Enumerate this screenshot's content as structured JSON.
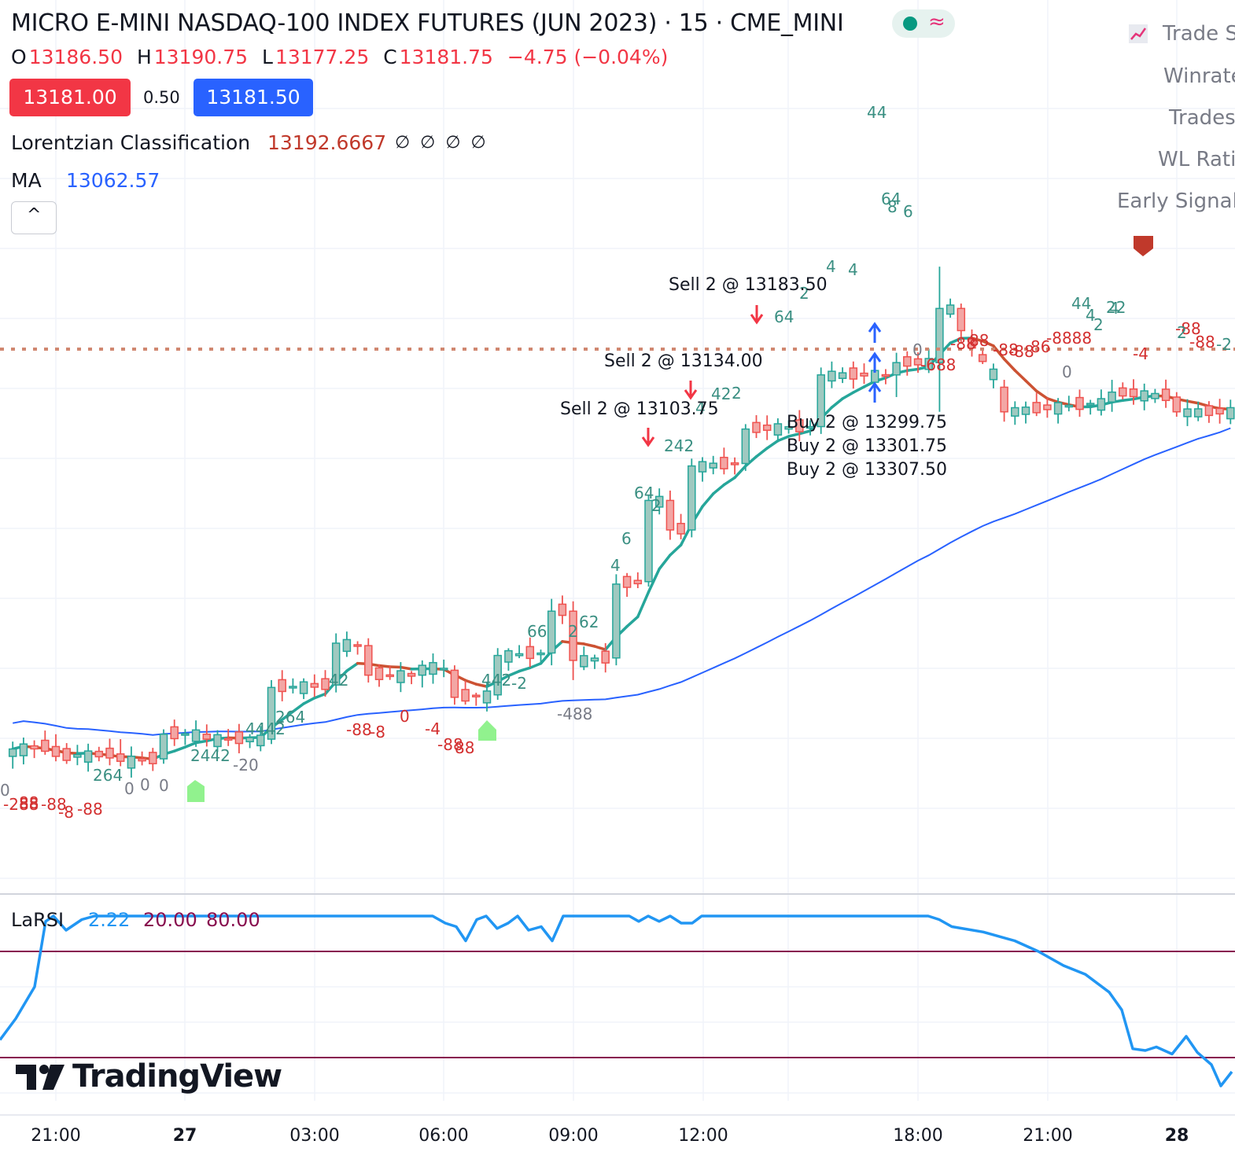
{
  "header": {
    "title": "MICRO E-MINI NASDAQ-100 INDEX FUTURES (JUN 2023) · 15 · CME_MINI",
    "status_icon": "market-open-dot",
    "status_color": "#089981",
    "replay_icon": "≈",
    "ohlc": {
      "o_label": "O",
      "o": "13186.50",
      "h_label": "H",
      "h": "13190.75",
      "l_label": "L",
      "l": "13177.25",
      "c_label": "C",
      "c": "13181.75",
      "change": "−4.75 (−0.04%)"
    },
    "bid": "13181.00",
    "spread": "0.50",
    "ask": "13181.50"
  },
  "indicators": [
    {
      "name": "Lorentzian Classification",
      "value": "13192.6667",
      "extras": "∅ ∅ ∅ ∅",
      "color": "#c0392b"
    },
    {
      "name": "MA",
      "value": "13062.57",
      "color": "#2962ff"
    }
  ],
  "collapse_icon": "chevron-up-icon",
  "stats_legend": {
    "icon": "chart-icon",
    "rows": [
      "Trade S",
      "Winrate",
      "Trades",
      "WL Rati",
      "Early Signal"
    ]
  },
  "colors": {
    "up": "#26a69a",
    "down": "#ef5350",
    "kernel_up": "#26a69a",
    "kernel_down": "#cc5233",
    "ma": "#2962ff",
    "larsi": "#2196f3",
    "larsi_band": "#880e4f",
    "buy_arrow": "#2962ff",
    "sell_arrow": "#f23645",
    "green_marker": "#7ef07a",
    "red_marker": "#c0392b"
  },
  "trade_labels": [
    {
      "text": "Sell 2 @ 13183.50",
      "kind": "sell"
    },
    {
      "text": "Sell 2 @ 13134.00",
      "kind": "sell"
    },
    {
      "text": "Sell 2 @ 13103.75",
      "kind": "sell"
    },
    {
      "text": "Buy 2 @ 13299.75",
      "kind": "buy"
    },
    {
      "text": "Buy 2 @ 13301.75",
      "kind": "buy"
    },
    {
      "text": "Buy 2 @ 13307.50",
      "kind": "buy"
    }
  ],
  "bar_labels": {
    "below_negative": [
      "-288",
      "88",
      "-88",
      "-8",
      "-88",
      "-88",
      "-8",
      "0",
      "-4",
      "-88",
      "88",
      "-688",
      "-88",
      "88",
      "-88",
      "-88",
      "86",
      "-8888",
      "-4",
      "-88",
      "-88"
    ],
    "below_neutral": [
      "0",
      "0",
      "-20",
      "-488",
      "0",
      "0",
      "0",
      "0"
    ],
    "above_positive": [
      "264",
      "2442",
      "4442",
      "264",
      "42",
      "442",
      "-2",
      "66",
      "62",
      "2",
      "4",
      "6",
      "64",
      "2",
      "242",
      "4",
      "42",
      "2",
      "64",
      "2",
      "4",
      "4",
      "44",
      "64",
      "8",
      "6",
      "44",
      "4",
      "4",
      "2",
      "22",
      "2",
      "-2"
    ]
  },
  "larsi": {
    "title": "LaRSI",
    "value": "2.22",
    "lower": "20.00",
    "upper": "80.00",
    "value_color": "#2196f3",
    "band_color": "#880e4f"
  },
  "time_axis": [
    {
      "label": "21:00",
      "bold": false
    },
    {
      "label": "27",
      "bold": true
    },
    {
      "label": "03:00",
      "bold": false
    },
    {
      "label": "06:00",
      "bold": false
    },
    {
      "label": "09:00",
      "bold": false
    },
    {
      "label": "12:00",
      "bold": false
    },
    {
      "label": "18:00",
      "bold": false
    },
    {
      "label": "21:00",
      "bold": false
    },
    {
      "label": "28",
      "bold": true
    }
  ],
  "logo": "TradingView",
  "chart_data": [
    {
      "type": "candlestick",
      "title": "MICRO E-MINI NASDAQ-100 INDEX FUTURES (JUN 2023) · 15 · CME_MINI",
      "interval": "15",
      "x_ticks": [
        "21:00",
        "27",
        "03:00",
        "06:00",
        "09:00",
        "12:00",
        "18:00",
        "21:00",
        "28"
      ],
      "approx_price_path": [
        {
          "time": "20:00",
          "o": 13020,
          "h": 13032,
          "l": 13010,
          "c": 13026
        },
        {
          "time": "21:00",
          "o": 13028,
          "h": 13038,
          "l": 13016,
          "c": 13020
        },
        {
          "time": "22:30",
          "o": 13022,
          "h": 13034,
          "l": 13012,
          "c": 13016
        },
        {
          "time": "23:30",
          "o": 13018,
          "h": 13042,
          "l": 13014,
          "c": 13038
        },
        {
          "time": "00:30",
          "o": 13038,
          "h": 13046,
          "l": 13028,
          "c": 13034
        },
        {
          "time": "02:00",
          "o": 13034,
          "h": 13082,
          "l": 13030,
          "c": 13076
        },
        {
          "time": "03:30",
          "o": 13078,
          "h": 13120,
          "l": 13072,
          "c": 13112
        },
        {
          "time": "04:15",
          "o": 13110,
          "h": 13116,
          "l": 13080,
          "c": 13086
        },
        {
          "time": "05:30",
          "o": 13086,
          "h": 13098,
          "l": 13076,
          "c": 13094
        },
        {
          "time": "06:15",
          "o": 13090,
          "h": 13094,
          "l": 13062,
          "c": 13068
        },
        {
          "time": "07:15",
          "o": 13070,
          "h": 13108,
          "l": 13066,
          "c": 13102
        },
        {
          "time": "08:30",
          "o": 13104,
          "h": 13148,
          "l": 13094,
          "c": 13138
        },
        {
          "time": "09:00",
          "o": 13138,
          "h": 13146,
          "l": 13082,
          "c": 13098
        },
        {
          "time": "10:00",
          "o": 13100,
          "h": 13168,
          "l": 13094,
          "c": 13160
        },
        {
          "time": "10:45",
          "o": 13162,
          "h": 13232,
          "l": 13158,
          "c": 13228
        },
        {
          "time": "11:15",
          "o": 13228,
          "h": 13236,
          "l": 13196,
          "c": 13204
        },
        {
          "time": "11:45",
          "o": 13204,
          "h": 13262,
          "l": 13198,
          "c": 13256
        },
        {
          "time": "13:00",
          "o": 13258,
          "h": 13290,
          "l": 13252,
          "c": 13286
        },
        {
          "time": "14:45",
          "o": 13288,
          "h": 13336,
          "l": 13282,
          "c": 13330
        },
        {
          "time": "16:30",
          "o": 13330,
          "h": 13348,
          "l": 13312,
          "c": 13340
        },
        {
          "time": "17:30",
          "o": 13340,
          "h": 13418,
          "l": 13300,
          "c": 13384
        },
        {
          "time": "18:00",
          "o": 13384,
          "h": 13388,
          "l": 13356,
          "c": 13366
        },
        {
          "time": "19:00",
          "o": 13320,
          "h": 13326,
          "l": 13292,
          "c": 13300
        },
        {
          "time": "21:30",
          "o": 13308,
          "h": 13326,
          "l": 13300,
          "c": 13316
        },
        {
          "time": "23:00",
          "o": 13312,
          "h": 13316,
          "l": 13296,
          "c": 13300
        },
        {
          "time": "00:30",
          "o": 13300,
          "h": 13310,
          "l": 13294,
          "c": 13306
        }
      ],
      "series": [
        {
          "name": "Lorentzian Classification",
          "last_value": 13192.6667
        },
        {
          "name": "MA",
          "last_value": 13062.57
        }
      ]
    },
    {
      "type": "line",
      "title": "LaRSI",
      "series": [
        {
          "name": "LaRSI",
          "last_value": 2.22
        }
      ],
      "levels": [
        20.0,
        80.0
      ],
      "ylim": [
        0,
        100
      ]
    }
  ]
}
